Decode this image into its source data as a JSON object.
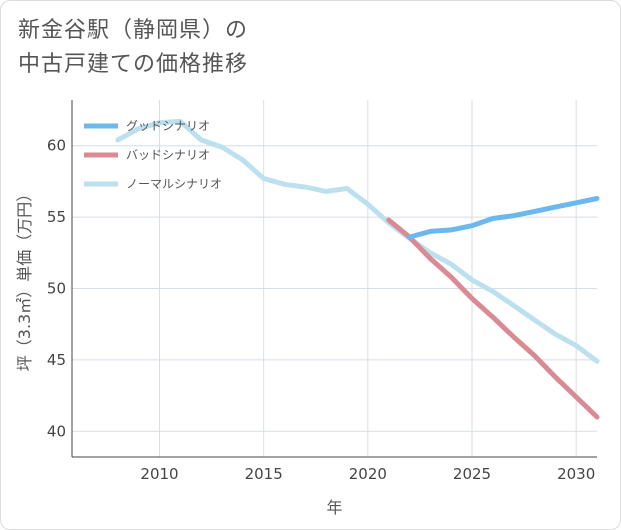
{
  "title_line1": "新金谷駅（静岡県）の",
  "title_line2": "中古戸建ての価格推移",
  "chart_data": {
    "type": "line",
    "xlabel": "年",
    "ylabel": "坪（3.3㎡）単価（万円）",
    "xlim": [
      2005.8,
      2031
    ],
    "ylim": [
      38.2,
      63.2
    ],
    "xticks": [
      2010,
      2015,
      2020,
      2025,
      2030
    ],
    "yticks": [
      40,
      45,
      50,
      55,
      60
    ],
    "grid": true,
    "legend_position": "top-left",
    "series": [
      {
        "name": "グッドシナリオ",
        "color": "#6bb8ef",
        "x": [
          2022,
          2023,
          2024,
          2025,
          2026,
          2027,
          2028,
          2029,
          2030,
          2031
        ],
        "y": [
          53.6,
          54.0,
          54.1,
          54.4,
          54.9,
          55.1,
          55.4,
          55.7,
          56.0,
          56.3
        ]
      },
      {
        "name": "バッドシナリオ",
        "color": "#da8a93",
        "x": [
          2021,
          2022,
          2023,
          2024,
          2025,
          2026,
          2027,
          2028,
          2029,
          2030,
          2031
        ],
        "y": [
          54.8,
          53.6,
          52.1,
          50.8,
          49.3,
          48.0,
          46.6,
          45.3,
          43.8,
          42.4,
          41.0
        ]
      },
      {
        "name": "ノーマルシナリオ",
        "color": "#bde0ef",
        "x": [
          2008,
          2009,
          2010,
          2011,
          2012,
          2013,
          2014,
          2015,
          2016,
          2017,
          2018,
          2019,
          2020,
          2021,
          2022,
          2023,
          2024,
          2025,
          2026,
          2027,
          2028,
          2029,
          2030,
          2031
        ],
        "y": [
          60.4,
          61.2,
          61.6,
          61.7,
          60.4,
          59.9,
          59.0,
          57.7,
          57.3,
          57.1,
          56.8,
          57.0,
          55.9,
          54.6,
          53.5,
          52.5,
          51.7,
          50.6,
          49.8,
          48.8,
          47.8,
          46.8,
          46.0,
          44.9
        ]
      }
    ]
  }
}
